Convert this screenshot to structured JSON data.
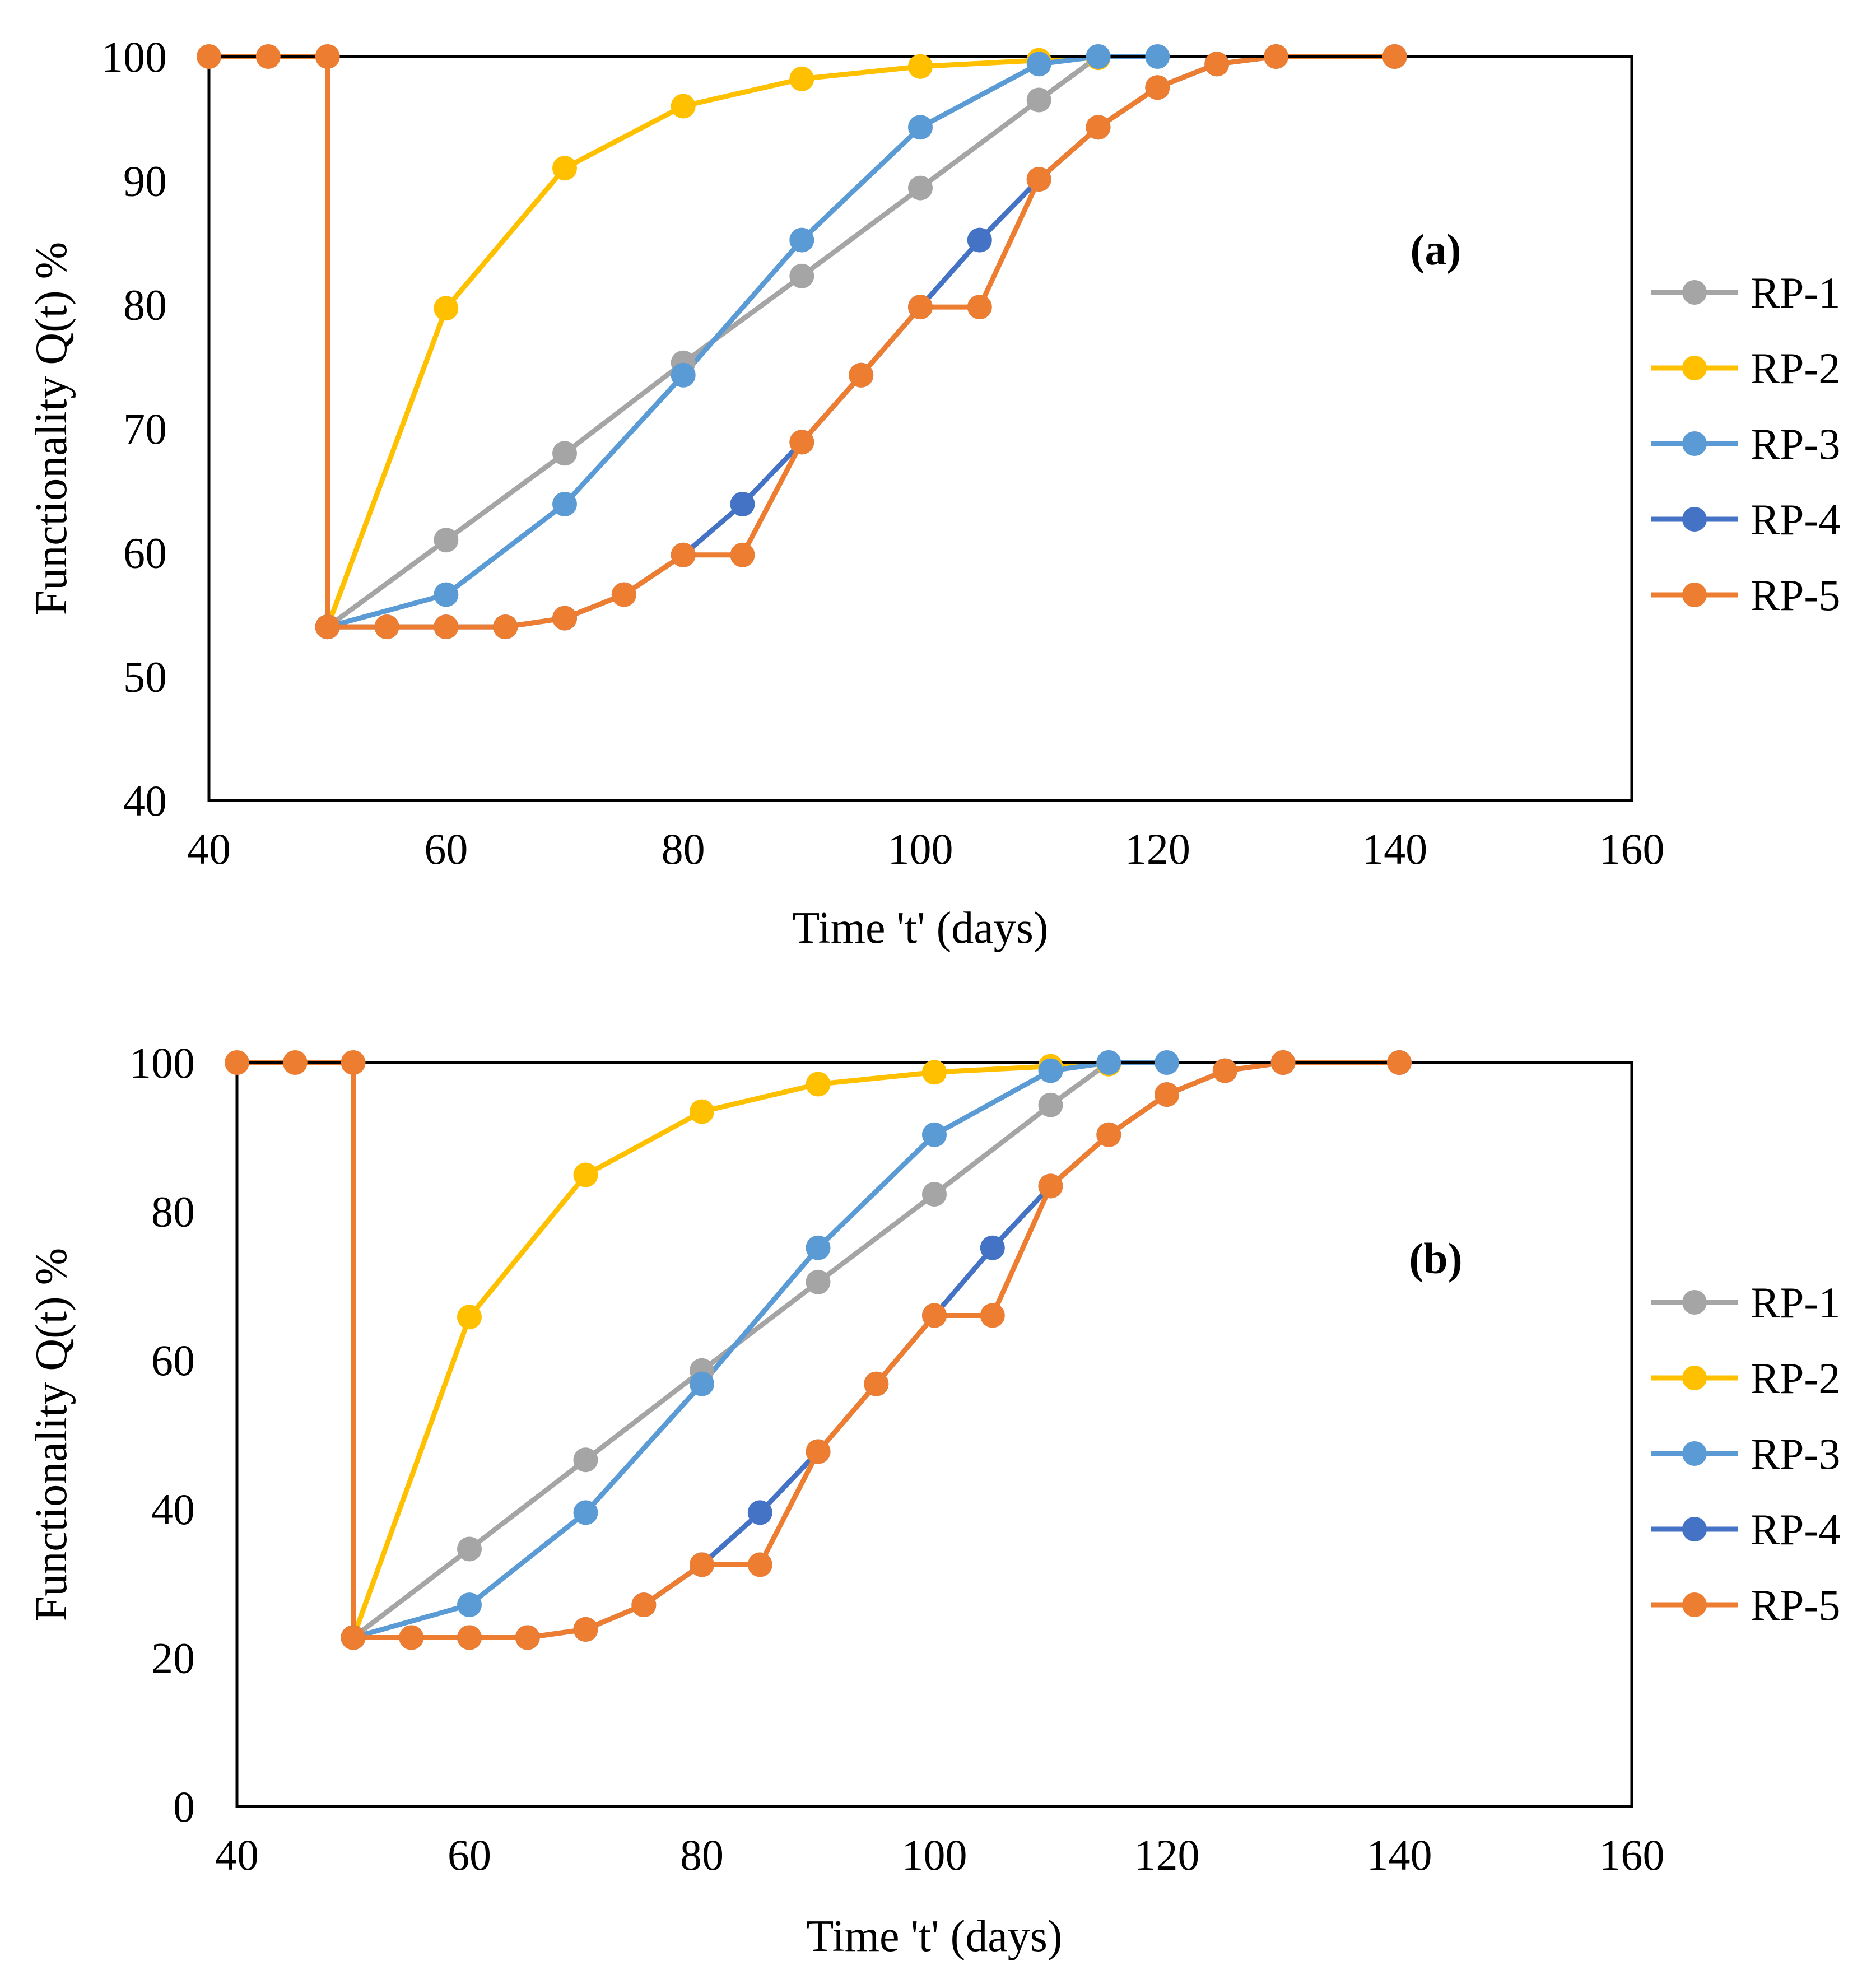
{
  "chart_data": [
    {
      "type": "line",
      "panel_label": "(a)",
      "xlabel": "Time 't' (days)",
      "ylabel": "Functionality Q(t) %",
      "xlim": [
        40,
        160
      ],
      "ylim": [
        40,
        100
      ],
      "xticks": [
        40,
        60,
        80,
        100,
        120,
        140,
        160
      ],
      "yticks": [
        40,
        50,
        60,
        70,
        80,
        90,
        100
      ],
      "legend_position": "right",
      "series": [
        {
          "name": "RP-1",
          "color": "#A5A5A5",
          "points": [
            [
              50,
              54
            ],
            [
              60,
              61
            ],
            [
              70,
              68
            ],
            [
              80,
              75.3
            ],
            [
              90,
              82.3
            ],
            [
              100,
              89.4
            ],
            [
              110,
              96.5
            ],
            [
              115,
              100
            ]
          ]
        },
        {
          "name": "RP-2",
          "color": "#FFC000",
          "points": [
            [
              50,
              54
            ],
            [
              60,
              79.7
            ],
            [
              70,
              91
            ],
            [
              80,
              96
            ],
            [
              90,
              98.2
            ],
            [
              100,
              99.2
            ],
            [
              110,
              99.7
            ],
            [
              115,
              99.9
            ]
          ]
        },
        {
          "name": "RP-3",
          "color": "#5B9BD5",
          "points": [
            [
              50,
              54
            ],
            [
              60,
              56.6
            ],
            [
              70,
              63.9
            ],
            [
              80,
              74.3
            ],
            [
              90,
              85.2
            ],
            [
              100,
              94.3
            ],
            [
              110,
              99.4
            ],
            [
              115,
              100
            ],
            [
              120,
              100
            ]
          ]
        },
        {
          "name": "RP-4",
          "color": "#4472C4",
          "points": [
            [
              50,
              54
            ],
            [
              55,
              54
            ],
            [
              60,
              54
            ],
            [
              65,
              54
            ],
            [
              70,
              54.7
            ],
            [
              75,
              56.6
            ],
            [
              80,
              59.8
            ],
            [
              85,
              63.9
            ],
            [
              90,
              68.9
            ],
            [
              95,
              74.3
            ],
            [
              100,
              79.8
            ],
            [
              105,
              85.2
            ],
            [
              110,
              90.1
            ],
            [
              115,
              94.3
            ],
            [
              120,
              97.5
            ],
            [
              125,
              99.4
            ],
            [
              130,
              100
            ],
            [
              140,
              100
            ]
          ]
        },
        {
          "name": "RP-5",
          "color": "#ED7D31",
          "points": [
            [
              40,
              100
            ],
            [
              45,
              100
            ],
            [
              50,
              100
            ],
            [
              50,
              54
            ],
            [
              55,
              54
            ],
            [
              60,
              54
            ],
            [
              65,
              54
            ],
            [
              70,
              54.7
            ],
            [
              75,
              56.6
            ],
            [
              80,
              59.8
            ],
            [
              85,
              59.8
            ],
            [
              90,
              68.9
            ],
            [
              95,
              74.3
            ],
            [
              100,
              79.8
            ],
            [
              105,
              79.8
            ],
            [
              110,
              90.1
            ],
            [
              115,
              94.3
            ],
            [
              120,
              97.5
            ],
            [
              125,
              99.4
            ],
            [
              130,
              100
            ],
            [
              140,
              100
            ]
          ]
        }
      ]
    },
    {
      "type": "line",
      "panel_label": "(b)",
      "xlabel": "Time 't' (days)",
      "ylabel": "Functionality Q(t) %",
      "xlim": [
        40,
        160
      ],
      "ylim": [
        0,
        100
      ],
      "xticks": [
        40,
        60,
        80,
        100,
        120,
        140,
        160
      ],
      "yticks": [
        0,
        20,
        40,
        60,
        80,
        100
      ],
      "legend_position": "right",
      "series": [
        {
          "name": "RP-1",
          "color": "#A5A5A5",
          "points": [
            [
              50,
              22.7
            ],
            [
              60,
              34.6
            ],
            [
              70,
              46.6
            ],
            [
              80,
              58.6
            ],
            [
              90,
              70.5
            ],
            [
              100,
              82.3
            ],
            [
              110,
              94.3
            ],
            [
              115,
              100
            ]
          ]
        },
        {
          "name": "RP-2",
          "color": "#FFC000",
          "points": [
            [
              50,
              22.7
            ],
            [
              60,
              65.8
            ],
            [
              70,
              84.9
            ],
            [
              80,
              93.4
            ],
            [
              90,
              97.1
            ],
            [
              100,
              98.7
            ],
            [
              110,
              99.5
            ],
            [
              115,
              99.8
            ]
          ]
        },
        {
          "name": "RP-3",
          "color": "#5B9BD5",
          "points": [
            [
              50,
              22.7
            ],
            [
              60,
              27.1
            ],
            [
              70,
              39.5
            ],
            [
              80,
              56.8
            ],
            [
              90,
              75.1
            ],
            [
              100,
              90.3
            ],
            [
              110,
              98.9
            ],
            [
              115,
              100
            ],
            [
              120,
              100
            ]
          ]
        },
        {
          "name": "RP-4",
          "color": "#4472C4",
          "points": [
            [
              50,
              22.7
            ],
            [
              55,
              22.7
            ],
            [
              60,
              22.7
            ],
            [
              65,
              22.7
            ],
            [
              70,
              23.8
            ],
            [
              75,
              27.1
            ],
            [
              80,
              32.5
            ],
            [
              85,
              39.5
            ],
            [
              90,
              47.7
            ],
            [
              95,
              56.8
            ],
            [
              100,
              66
            ],
            [
              105,
              75.1
            ],
            [
              110,
              83.4
            ],
            [
              115,
              90.3
            ],
            [
              120,
              95.7
            ],
            [
              125,
              98.9
            ],
            [
              130,
              100
            ],
            [
              140,
              100
            ]
          ]
        },
        {
          "name": "RP-5",
          "color": "#ED7D31",
          "points": [
            [
              40,
              100
            ],
            [
              45,
              100
            ],
            [
              50,
              100
            ],
            [
              50,
              22.7
            ],
            [
              55,
              22.7
            ],
            [
              60,
              22.7
            ],
            [
              65,
              22.7
            ],
            [
              70,
              23.8
            ],
            [
              75,
              27.1
            ],
            [
              80,
              32.5
            ],
            [
              85,
              32.5
            ],
            [
              90,
              47.7
            ],
            [
              95,
              56.8
            ],
            [
              100,
              66
            ],
            [
              105,
              66
            ],
            [
              110,
              83.4
            ],
            [
              115,
              90.3
            ],
            [
              120,
              95.7
            ],
            [
              125,
              98.9
            ],
            [
              130,
              100
            ],
            [
              140,
              100
            ]
          ]
        }
      ]
    }
  ]
}
